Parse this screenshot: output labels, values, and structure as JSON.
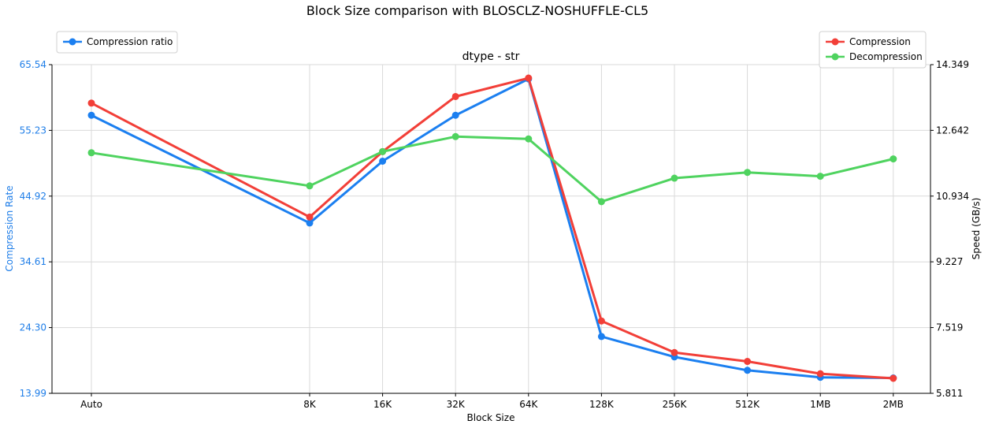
{
  "chart_data": {
    "type": "line",
    "title": "Block Size comparison with BLOSCLZ-NOSHUFFLE-CL5",
    "subtitle": "dtype - str",
    "xlabel": "Block Size",
    "ylabel_left": "Compression Rate",
    "ylabel_right": "Speed (GB/s)",
    "categories": [
      "Auto",
      "8K",
      "16K",
      "32K",
      "64K",
      "128K",
      "256K",
      "512K",
      "1MB",
      "2MB"
    ],
    "x_positions": [
      0,
      3,
      4,
      5,
      6,
      7,
      8,
      9,
      10,
      11
    ],
    "left_axis": {
      "ylim": [
        13.99,
        65.54
      ],
      "ticks": [
        13.99,
        24.3,
        34.61,
        44.92,
        55.23,
        65.54
      ],
      "tick_labels": [
        "13.99",
        "24.30",
        "34.61",
        "44.92",
        "55.23",
        "65.54"
      ],
      "color": "#1f7ee8"
    },
    "right_axis": {
      "ylim": [
        5.811,
        14.349
      ],
      "ticks": [
        5.811,
        7.519,
        9.227,
        10.934,
        12.642,
        14.349
      ],
      "tick_labels": [
        "5.811",
        "7.519",
        "9.227",
        "10.934",
        "12.642",
        "14.349"
      ],
      "color": "#000000"
    },
    "series": [
      {
        "name": "Compression ratio",
        "axis": "left",
        "color": "#1b7ff0",
        "values": [
          57.6,
          40.7,
          50.4,
          57.6,
          63.3,
          22.9,
          19.7,
          17.6,
          16.5,
          16.4
        ]
      },
      {
        "name": "Compression",
        "axis": "right",
        "color": "#f23f38",
        "values": [
          13.35,
          10.39,
          12.09,
          13.52,
          14.0,
          7.69,
          6.87,
          6.64,
          6.32,
          6.2
        ]
      },
      {
        "name": "Decompression",
        "axis": "right",
        "color": "#4fd35f",
        "values": [
          12.06,
          11.2,
          12.09,
          12.48,
          12.42,
          10.79,
          11.4,
          11.55,
          11.45,
          11.9
        ]
      }
    ],
    "legends": [
      {
        "position": "top-left",
        "entries": [
          "Compression ratio"
        ]
      },
      {
        "position": "top-right",
        "entries": [
          "Compression",
          "Decompression"
        ]
      }
    ],
    "grid": true
  }
}
